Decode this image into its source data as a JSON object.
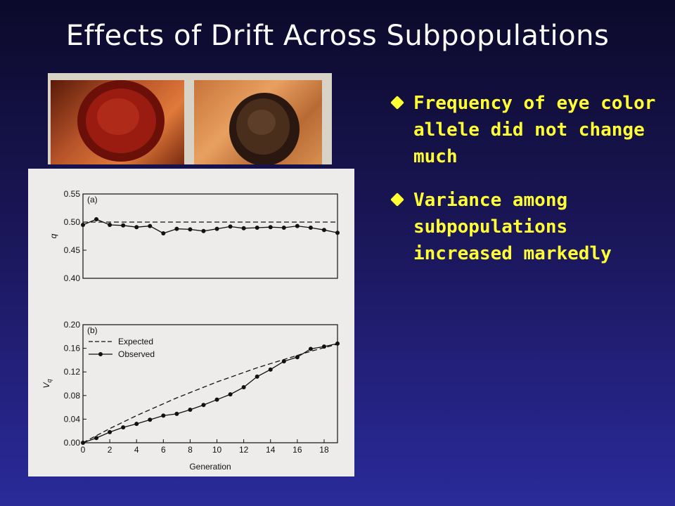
{
  "slide": {
    "title": "Effects of Drift Across Subpopulations",
    "bullets": [
      "Frequency of eye color allele did not change much",
      "Variance among subpopulations increased markedly"
    ]
  },
  "chart_data": [
    {
      "type": "line",
      "panel_label": "(a)",
      "ylabel": "q",
      "xlabel": "",
      "xlim": [
        0,
        19
      ],
      "ylim": [
        0.4,
        0.55
      ],
      "yticks": [
        "0.55",
        "0.50",
        "0.45",
        "0.40"
      ],
      "reference_line": 0.5,
      "series": [
        {
          "x": [
            0,
            1,
            2,
            3,
            4,
            5,
            6,
            7,
            8,
            9,
            10,
            11,
            12,
            13,
            14,
            15,
            16,
            17,
            18,
            19
          ],
          "values": [
            0.495,
            0.505,
            0.495,
            0.494,
            0.491,
            0.493,
            0.48,
            0.488,
            0.487,
            0.484,
            0.488,
            0.492,
            0.489,
            0.49,
            0.491,
            0.49,
            0.493,
            0.49,
            0.486,
            0.481
          ]
        }
      ]
    },
    {
      "type": "line",
      "panel_label": "(b)",
      "ylabel": "Vq",
      "xlabel": "Generation",
      "xlim": [
        0,
        19
      ],
      "ylim": [
        0,
        0.2
      ],
      "yticks": [
        "0.20",
        "0.16",
        "0.12",
        "0.08",
        "0.04",
        "0.00"
      ],
      "xticks": [
        "0",
        "2",
        "4",
        "6",
        "8",
        "10",
        "12",
        "14",
        "16",
        "18"
      ],
      "legend": "top-left",
      "series": [
        {
          "name": "Expected",
          "x": [
            0,
            1,
            2,
            3,
            4,
            5,
            6,
            7,
            8,
            9,
            10,
            11,
            12,
            13,
            14,
            15,
            16,
            17,
            18,
            19
          ],
          "values": [
            0,
            0.012,
            0.024,
            0.035,
            0.046,
            0.056,
            0.066,
            0.076,
            0.085,
            0.094,
            0.103,
            0.111,
            0.119,
            0.127,
            0.134,
            0.141,
            0.148,
            0.155,
            0.161,
            0.167
          ]
        },
        {
          "name": "Observed",
          "x": [
            0,
            1,
            2,
            3,
            4,
            5,
            6,
            7,
            8,
            9,
            10,
            11,
            12,
            13,
            14,
            15,
            16,
            17,
            18,
            19
          ],
          "values": [
            0,
            0.008,
            0.018,
            0.026,
            0.032,
            0.039,
            0.046,
            0.049,
            0.056,
            0.064,
            0.073,
            0.082,
            0.094,
            0.112,
            0.124,
            0.138,
            0.145,
            0.159,
            0.163,
            0.168
          ]
        }
      ]
    }
  ]
}
